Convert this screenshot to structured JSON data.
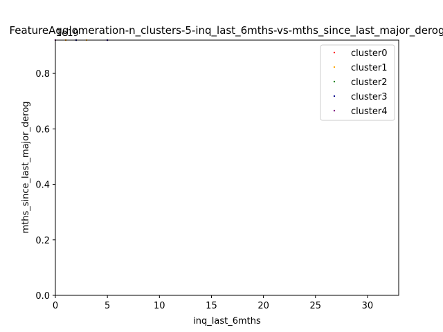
{
  "chart_data": {
    "type": "scatter",
    "title": "FeatureAgglomeration-n_clusters-5-inq_last_6mths-vs-mths_since_last_major_derog",
    "xlabel": "inq_last_6mths",
    "ylabel": "mths_since_last_major_derog",
    "y_offset_label": "1e19",
    "xlim": [
      0,
      33
    ],
    "ylim": [
      0,
      0.92
    ],
    "x_ticks": [
      0,
      5,
      10,
      15,
      20,
      25,
      30
    ],
    "y_ticks": [
      0.0,
      0.2,
      0.4,
      0.6,
      0.8
    ],
    "x_tick_labels": [
      "0",
      "5",
      "10",
      "15",
      "20",
      "25",
      "30"
    ],
    "y_tick_labels": [
      "0.0",
      "0.2",
      "0.4",
      "0.6",
      "0.8"
    ],
    "grid": false,
    "legend_position": "top-right",
    "series": [
      {
        "name": "cluster0",
        "color": "#ff0000",
        "points": [
          [
            1,
            0.92
          ],
          [
            2,
            0.92
          ],
          [
            5,
            0.92
          ]
        ]
      },
      {
        "name": "cluster1",
        "color": "#ffa500",
        "points": [
          [
            1,
            0.92
          ],
          [
            3,
            0.92
          ]
        ]
      },
      {
        "name": "cluster2",
        "color": "#008000",
        "points": [
          [
            0,
            0.92
          ],
          [
            2,
            0.92
          ]
        ]
      },
      {
        "name": "cluster3",
        "color": "#00008b",
        "points": [
          [
            2,
            0.92
          ],
          [
            5,
            0.92
          ]
        ]
      },
      {
        "name": "cluster4",
        "color": "#800080",
        "points": [
          [
            0,
            0.92
          ]
        ]
      }
    ]
  }
}
